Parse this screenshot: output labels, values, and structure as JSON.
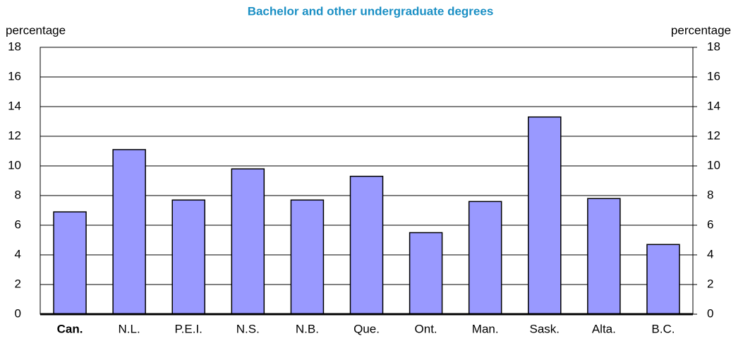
{
  "chart_data": {
    "type": "bar",
    "title": "Bachelor and other undergraduate degrees",
    "y_label": "percentage",
    "y2_label": "percentage",
    "categories": [
      "Can.",
      "N.L.",
      "P.E.I.",
      "N.S.",
      "N.B.",
      "Que.",
      "Ont.",
      "Man.",
      "Sask.",
      "Alta.",
      "B.C."
    ],
    "values": [
      6.9,
      11.1,
      7.7,
      9.8,
      7.7,
      9.3,
      5.5,
      7.6,
      13.3,
      7.8,
      4.7
    ],
    "color": "#9999ff",
    "ylim": [
      0,
      18
    ],
    "yticks": [
      0,
      2,
      4,
      6,
      8,
      10,
      12,
      14,
      16,
      18
    ],
    "y2lim": [
      0,
      18
    ],
    "y2ticks": [
      0,
      2,
      4,
      6,
      8,
      10,
      12,
      14,
      16,
      18
    ],
    "grid": true
  }
}
